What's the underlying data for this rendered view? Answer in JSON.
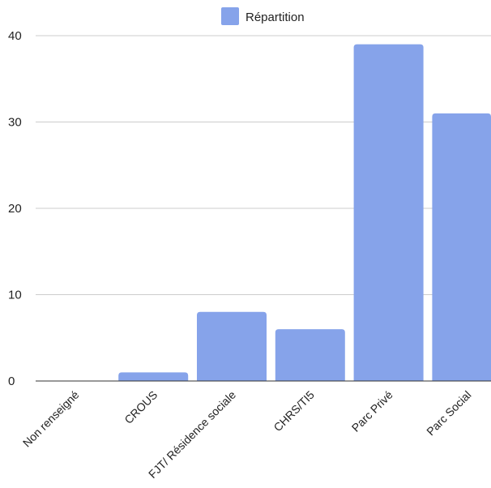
{
  "chart_data": {
    "type": "bar",
    "title": "",
    "xlabel": "",
    "ylabel": "",
    "categories": [
      "Non renseigné",
      "CROUS",
      "FJT/ Résidence sociale",
      "CHRS/TI5",
      "Parc Privé",
      "Parc Social"
    ],
    "series": [
      {
        "name": "Répartition",
        "values": [
          0,
          1,
          8,
          6,
          39,
          31
        ]
      }
    ],
    "ylim": [
      0,
      40
    ],
    "yticks": [
      0,
      10,
      20,
      30,
      40
    ],
    "grid": true,
    "legend": "top-center",
    "colors": {
      "bar": "#86a3ea",
      "grid": "#cccccc",
      "axis": "#333333"
    }
  }
}
